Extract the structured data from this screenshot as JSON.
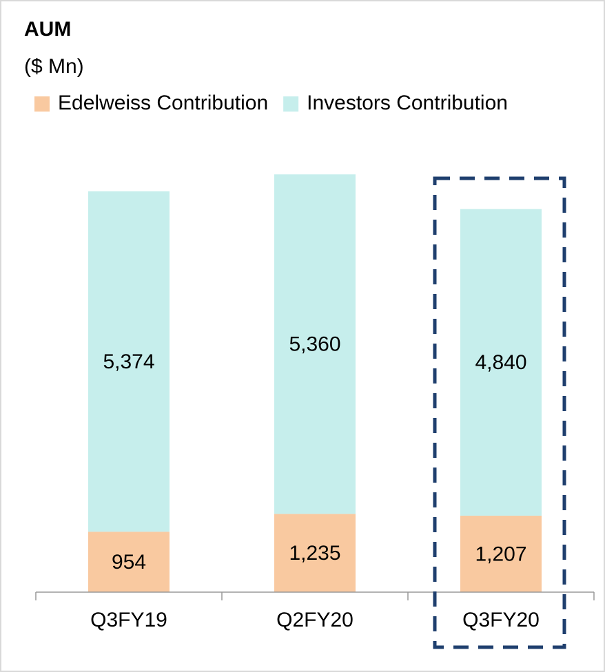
{
  "chart_data": {
    "type": "bar",
    "stacked": true,
    "title": "AUM",
    "subtitle": "($ Mn)",
    "categories": [
      "Q3FY19",
      "Q2FY20",
      "Q3FY20"
    ],
    "series": [
      {
        "name": "Edelweiss Contribution",
        "color": "#f9c9a0",
        "values": [
          954,
          1235,
          1207
        ],
        "value_labels": [
          "954",
          "1,235",
          "1,207"
        ]
      },
      {
        "name": "Investors Contribution",
        "color": "#c6eeec",
        "values": [
          5374,
          5360,
          4840
        ],
        "value_labels": [
          "5,374",
          "5,360",
          "4,840"
        ]
      }
    ],
    "ylim": [
      0,
      7000
    ],
    "legend": "top-left"
  }
}
